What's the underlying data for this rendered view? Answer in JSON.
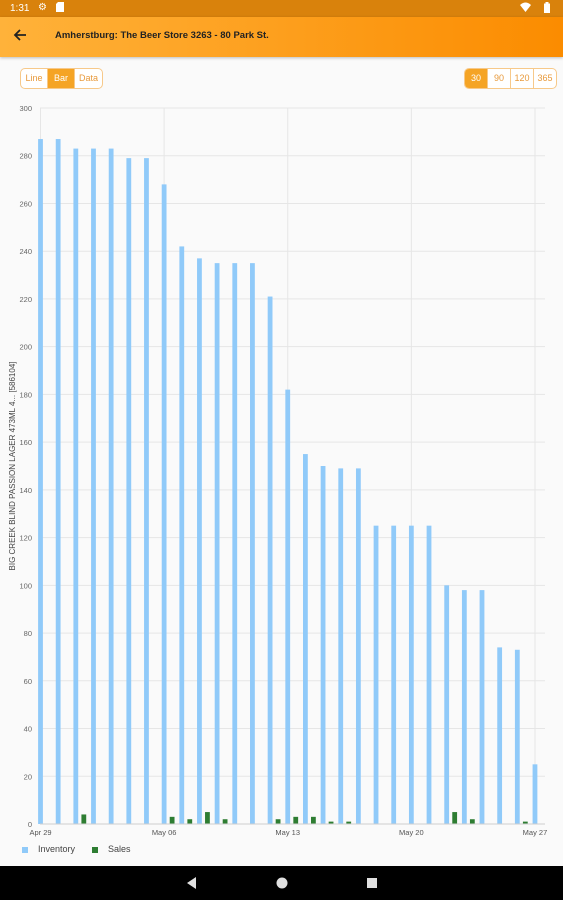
{
  "status_bar": {
    "time": "1:31",
    "icons": [
      "gear-icon",
      "sd-card-icon",
      "wifi-icon",
      "battery-icon"
    ]
  },
  "app_bar": {
    "title": "Amherstburg: The Beer Store 3263 - 80 Park St.",
    "back_icon": "arrow-left-icon"
  },
  "view_toggle": {
    "options": [
      "Line",
      "Bar",
      "Data"
    ],
    "selected": "Bar"
  },
  "range_toggle": {
    "options": [
      "30",
      "90",
      "120",
      "365"
    ],
    "selected": "30"
  },
  "colors": {
    "accent": "#f5a425",
    "inventory": "#90caf9",
    "sales": "#2e7d32"
  },
  "chart_data": {
    "type": "bar",
    "ylabel": "BIG CREEK BLIND PASSION LAGER 473ML 4... [586104]",
    "ylim": [
      0,
      300
    ],
    "yticks": [
      "0",
      "20",
      "40",
      "60",
      "80",
      "100",
      "120",
      "140",
      "160",
      "180",
      "200",
      "220",
      "240",
      "260",
      "280",
      "300"
    ],
    "xtick_labels": [
      "Apr 29",
      "May 06",
      "May 13",
      "May 20",
      "May 27"
    ],
    "grid": true,
    "legend_position": "bottom-left",
    "series": [
      {
        "name": "Inventory",
        "values": [
          287,
          287,
          283,
          283,
          283,
          279,
          279,
          268,
          242,
          237,
          235,
          235,
          235,
          221,
          182,
          155,
          150,
          149,
          149,
          125,
          125,
          125,
          125,
          100,
          98,
          98,
          74,
          73,
          25
        ]
      },
      {
        "name": "Sales",
        "values": [
          0,
          0,
          4,
          0,
          0,
          0,
          0,
          3,
          2,
          5,
          2,
          0,
          0,
          2,
          3,
          3,
          1,
          1,
          0,
          0,
          0,
          0,
          0,
          5,
          2,
          0,
          0,
          1,
          0
        ]
      }
    ]
  },
  "nav_bar": {
    "icons": [
      "back-triangle-icon",
      "home-circle-icon",
      "recents-square-icon"
    ]
  }
}
